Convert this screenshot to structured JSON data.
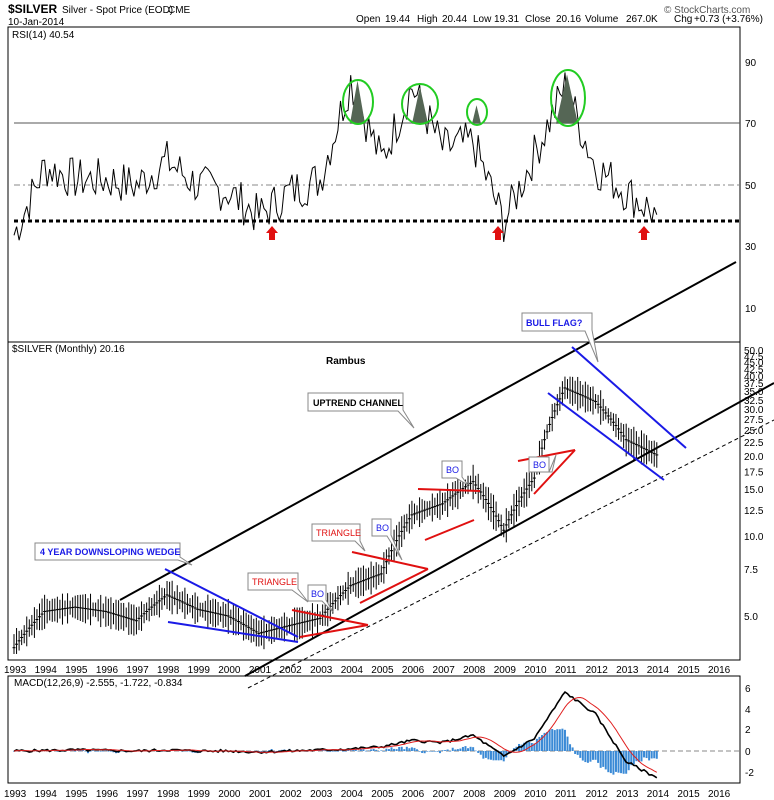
{
  "header": {
    "symbol": "$SILVER",
    "name": "Silver - Spot Price (EOD)",
    "exchange": "CME",
    "date": "10-Jan-2014",
    "open_label": "Open",
    "open": "19.44",
    "high_label": "High",
    "high": "20.44",
    "low_label": "Low",
    "low": "19.31",
    "close_label": "Close",
    "close": "20.16",
    "volume_label": "Volume",
    "volume": "267.0K",
    "chg_label": "Chg",
    "chg": "+0.73 (+3.76%)",
    "watermark": "© StockCharts.com"
  },
  "panels": {
    "rsi_label": "RSI(14) 40.54",
    "price_label": "$SILVER (Monthly) 20.16",
    "macd_label": "MACD(12,26,9) -2.555, -1.722, -0.834",
    "macd_val1": "-1.722",
    "macd_val2": "-0.834"
  },
  "annotations": {
    "author": "Rambus",
    "uptrend": "UPTREND CHANNEL",
    "bull_flag": "BULL FLAG?",
    "wedge": "4 YEAR DOWNSLOPING WEDGE",
    "triangle1": "TRIANGLE",
    "triangle2": "TRIANGLE",
    "bo1": "BO",
    "bo2": "BO",
    "bo3": "BO",
    "bo4": "BO"
  },
  "colors": {
    "blue": "#1a1ae6",
    "red": "#e01010",
    "green": "#22cc22",
    "macd_hist": "#3a8ad6",
    "signal": "#e02020"
  },
  "chart_data": [
    {
      "type": "line",
      "name": "RSI(14)",
      "x": [
        "1993",
        "1994",
        "1995",
        "1996",
        "1997",
        "1998",
        "1999",
        "2000",
        "2001",
        "2002",
        "2003",
        "2004",
        "2005",
        "2006",
        "2007",
        "2008",
        "2009",
        "2010",
        "2011",
        "2012",
        "2013",
        "2014"
      ],
      "values": [
        34,
        56,
        52,
        52,
        50,
        58,
        50,
        48,
        40,
        48,
        52,
        84,
        58,
        82,
        62,
        64,
        38,
        60,
        82,
        56,
        48,
        40.54
      ],
      "y_ticks": [
        "90",
        "70",
        "50",
        "30",
        "10"
      ],
      "ylim": [
        0,
        100
      ],
      "reference_lines": [
        70,
        50,
        38
      ]
    },
    {
      "type": "line",
      "name": "$SILVER (Monthly)",
      "x": [
        "1993",
        "1994",
        "1995",
        "1996",
        "1997",
        "1998",
        "1999",
        "2000",
        "2001",
        "2002",
        "2003",
        "2004",
        "2005",
        "2006",
        "2007",
        "2008",
        "2009",
        "2010",
        "2011",
        "2012",
        "2013",
        "2014"
      ],
      "values": [
        3.8,
        5.2,
        5.4,
        5.2,
        4.8,
        6.0,
        5.3,
        5.0,
        4.3,
        4.6,
        4.9,
        6.5,
        7.2,
        12.0,
        13.2,
        16.0,
        10.5,
        16.5,
        36.0,
        32.0,
        23.0,
        20.16
      ],
      "y_ticks": [
        "50.0",
        "47.5",
        "45.0",
        "42.5",
        "40.0",
        "37.5",
        "35.0",
        "32.5",
        "30.0",
        "27.5",
        "25.0",
        "22.5",
        "20.0",
        "17.5",
        "15.0",
        "12.5",
        "10.0",
        "7.5",
        "5.0"
      ],
      "scale": "log",
      "x_ticks": [
        "1993",
        "1994",
        "1995",
        "1996",
        "1997",
        "1998",
        "1999",
        "2000",
        "2001",
        "2002",
        "2003",
        "2004",
        "2005",
        "2006",
        "2007",
        "2008",
        "2009",
        "2010",
        "2011",
        "2012",
        "2013",
        "2014",
        "2015",
        "2016"
      ]
    },
    {
      "type": "line",
      "name": "MACD(12,26,9)",
      "x": [
        "1993",
        "1994",
        "1995",
        "1996",
        "1997",
        "1998",
        "1999",
        "2000",
        "2001",
        "2002",
        "2003",
        "2004",
        "2005",
        "2006",
        "2007",
        "2008",
        "2009",
        "2010",
        "2011",
        "2012",
        "2013",
        "2014"
      ],
      "values": [
        0,
        0.05,
        0.1,
        0.05,
        0,
        0.1,
        0,
        0,
        -0.1,
        0,
        0.1,
        0.2,
        0.4,
        1.0,
        0.8,
        1.5,
        -0.5,
        1.2,
        5.6,
        3.5,
        -1.0,
        -2.555
      ],
      "y_ticks": [
        "6",
        "4",
        "2",
        "0",
        "-2"
      ],
      "ylim": [
        -3,
        7
      ]
    }
  ]
}
